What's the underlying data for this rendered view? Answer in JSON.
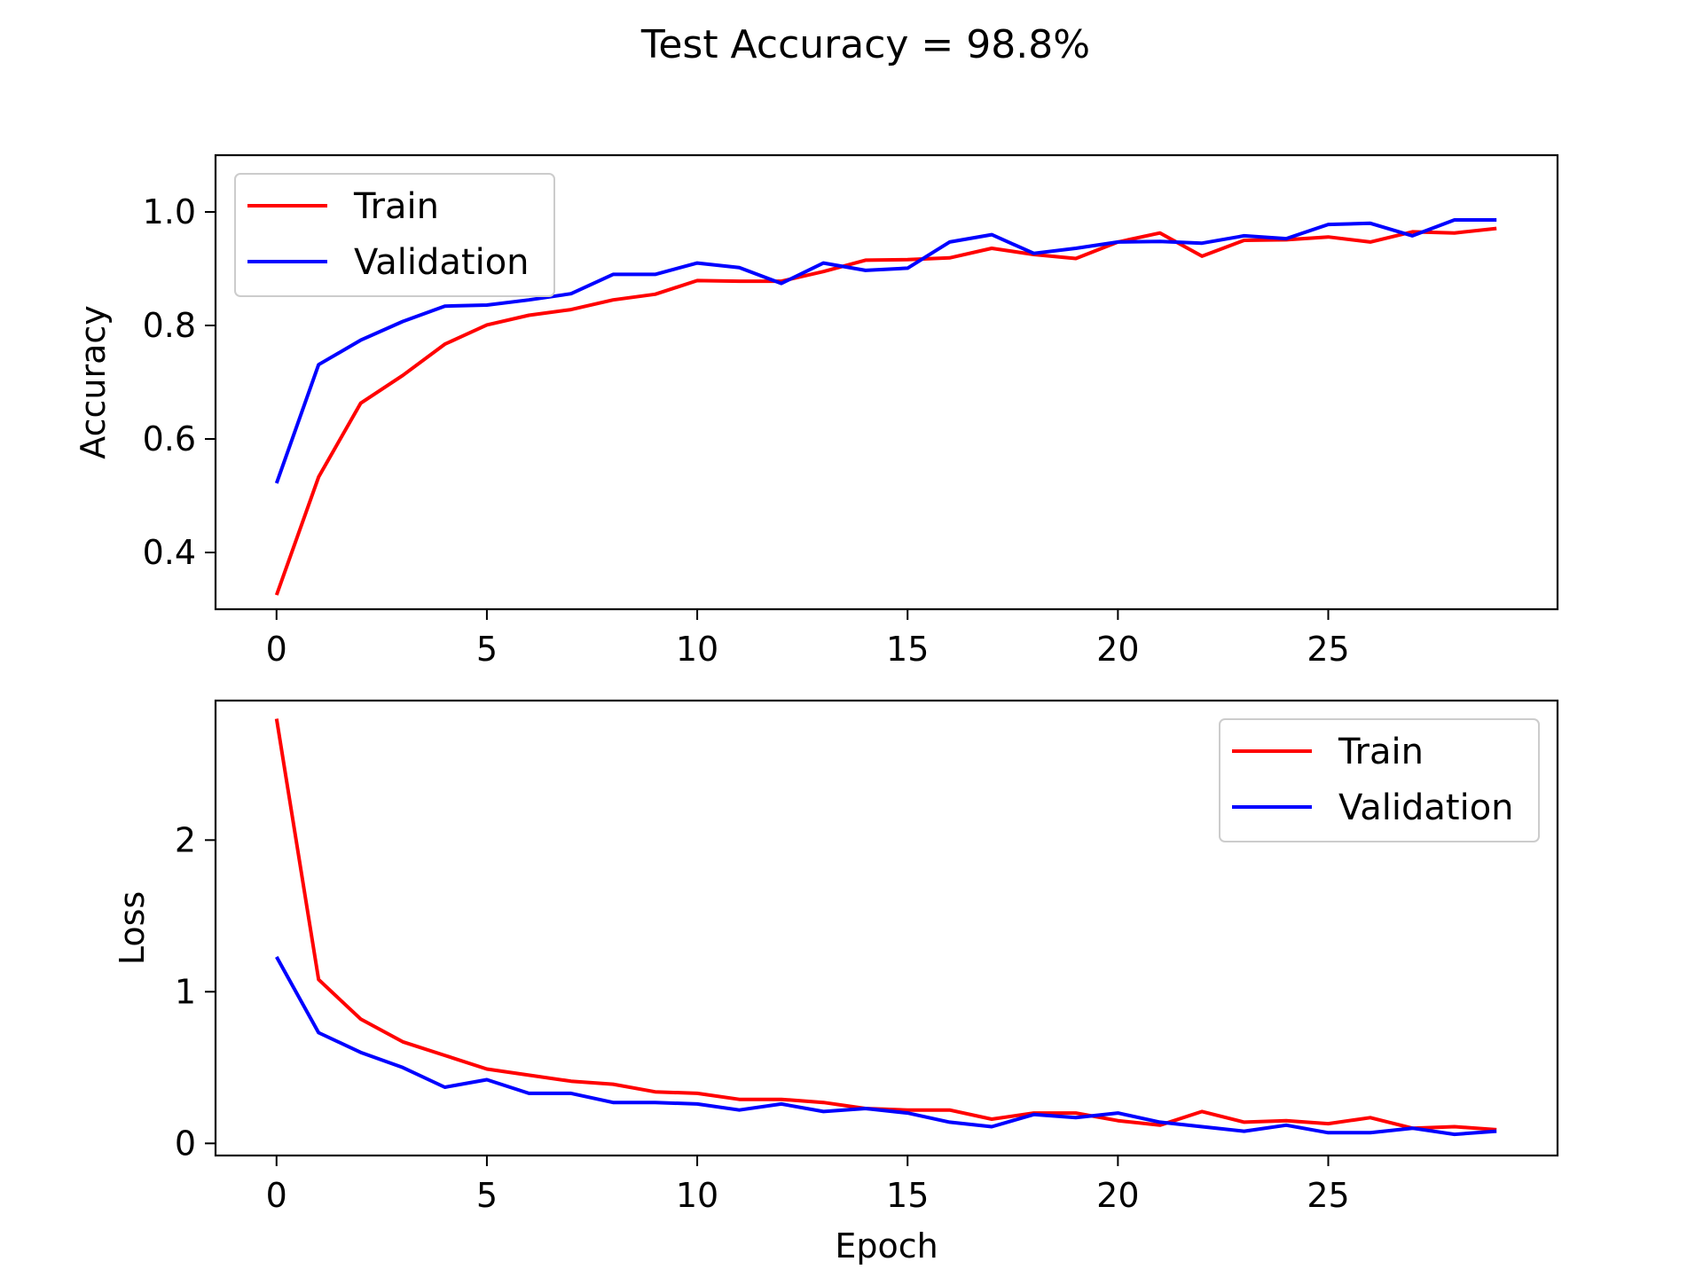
{
  "suptitle": "Test Accuracy = 98.8%",
  "colors": {
    "train": "#ff0000",
    "validation": "#0000ff"
  },
  "chart_data": [
    {
      "type": "line",
      "xlabel": "",
      "ylabel": "Accuracy",
      "xlim": [
        -1.45,
        30.45
      ],
      "ylim": [
        0.3,
        1.1
      ],
      "xticks": [
        0,
        5,
        10,
        15,
        20,
        25
      ],
      "yticks": [
        0.4,
        0.6,
        0.8,
        1.0
      ],
      "ytick_labels": [
        "0.4",
        "0.6",
        "0.8",
        "1.0"
      ],
      "legend": "top-left",
      "grid": false,
      "x": [
        0,
        1,
        2,
        3,
        4,
        5,
        6,
        7,
        8,
        9,
        10,
        11,
        12,
        13,
        14,
        15,
        16,
        17,
        18,
        19,
        20,
        21,
        22,
        23,
        24,
        25,
        26,
        27,
        28,
        29
      ],
      "series": [
        {
          "name": "Train",
          "color": "#ff0000",
          "values": [
            0.325,
            0.533,
            0.663,
            0.712,
            0.767,
            0.801,
            0.818,
            0.828,
            0.845,
            0.855,
            0.879,
            0.878,
            0.878,
            0.895,
            0.915,
            0.916,
            0.919,
            0.936,
            0.925,
            0.918,
            0.947,
            0.963,
            0.922,
            0.95,
            0.951,
            0.956,
            0.947,
            0.965,
            0.963,
            0.971
          ]
        },
        {
          "name": "Validation",
          "color": "#0000ff",
          "values": [
            0.522,
            0.731,
            0.774,
            0.807,
            0.834,
            0.836,
            0.845,
            0.856,
            0.89,
            0.89,
            0.91,
            0.902,
            0.874,
            0.91,
            0.897,
            0.901,
            0.947,
            0.96,
            0.927,
            0.936,
            0.947,
            0.948,
            0.945,
            0.958,
            0.953,
            0.978,
            0.98,
            0.958,
            0.986,
            0.986
          ]
        }
      ]
    },
    {
      "type": "line",
      "xlabel": "Epoch",
      "ylabel": "Loss",
      "xlim": [
        -1.45,
        30.45
      ],
      "ylim": [
        -0.08,
        2.92
      ],
      "xticks": [
        0,
        5,
        10,
        15,
        20,
        25
      ],
      "yticks": [
        0,
        1,
        2
      ],
      "ytick_labels": [
        "0",
        "1",
        "2"
      ],
      "legend": "top-right",
      "grid": false,
      "x": [
        0,
        1,
        2,
        3,
        4,
        5,
        6,
        7,
        8,
        9,
        10,
        11,
        12,
        13,
        14,
        15,
        16,
        17,
        18,
        19,
        20,
        21,
        22,
        23,
        24,
        25,
        26,
        27,
        28,
        29
      ],
      "series": [
        {
          "name": "Train",
          "color": "#ff0000",
          "values": [
            2.8,
            1.08,
            0.82,
            0.67,
            0.58,
            0.49,
            0.45,
            0.41,
            0.39,
            0.34,
            0.33,
            0.29,
            0.29,
            0.27,
            0.23,
            0.22,
            0.22,
            0.16,
            0.2,
            0.2,
            0.15,
            0.12,
            0.21,
            0.14,
            0.15,
            0.13,
            0.17,
            0.1,
            0.11,
            0.09
          ]
        },
        {
          "name": "Validation",
          "color": "#0000ff",
          "values": [
            1.23,
            0.73,
            0.6,
            0.5,
            0.37,
            0.42,
            0.33,
            0.33,
            0.27,
            0.27,
            0.26,
            0.22,
            0.26,
            0.21,
            0.23,
            0.2,
            0.14,
            0.11,
            0.19,
            0.17,
            0.2,
            0.14,
            0.11,
            0.08,
            0.12,
            0.07,
            0.07,
            0.1,
            0.06,
            0.08
          ]
        }
      ]
    }
  ]
}
